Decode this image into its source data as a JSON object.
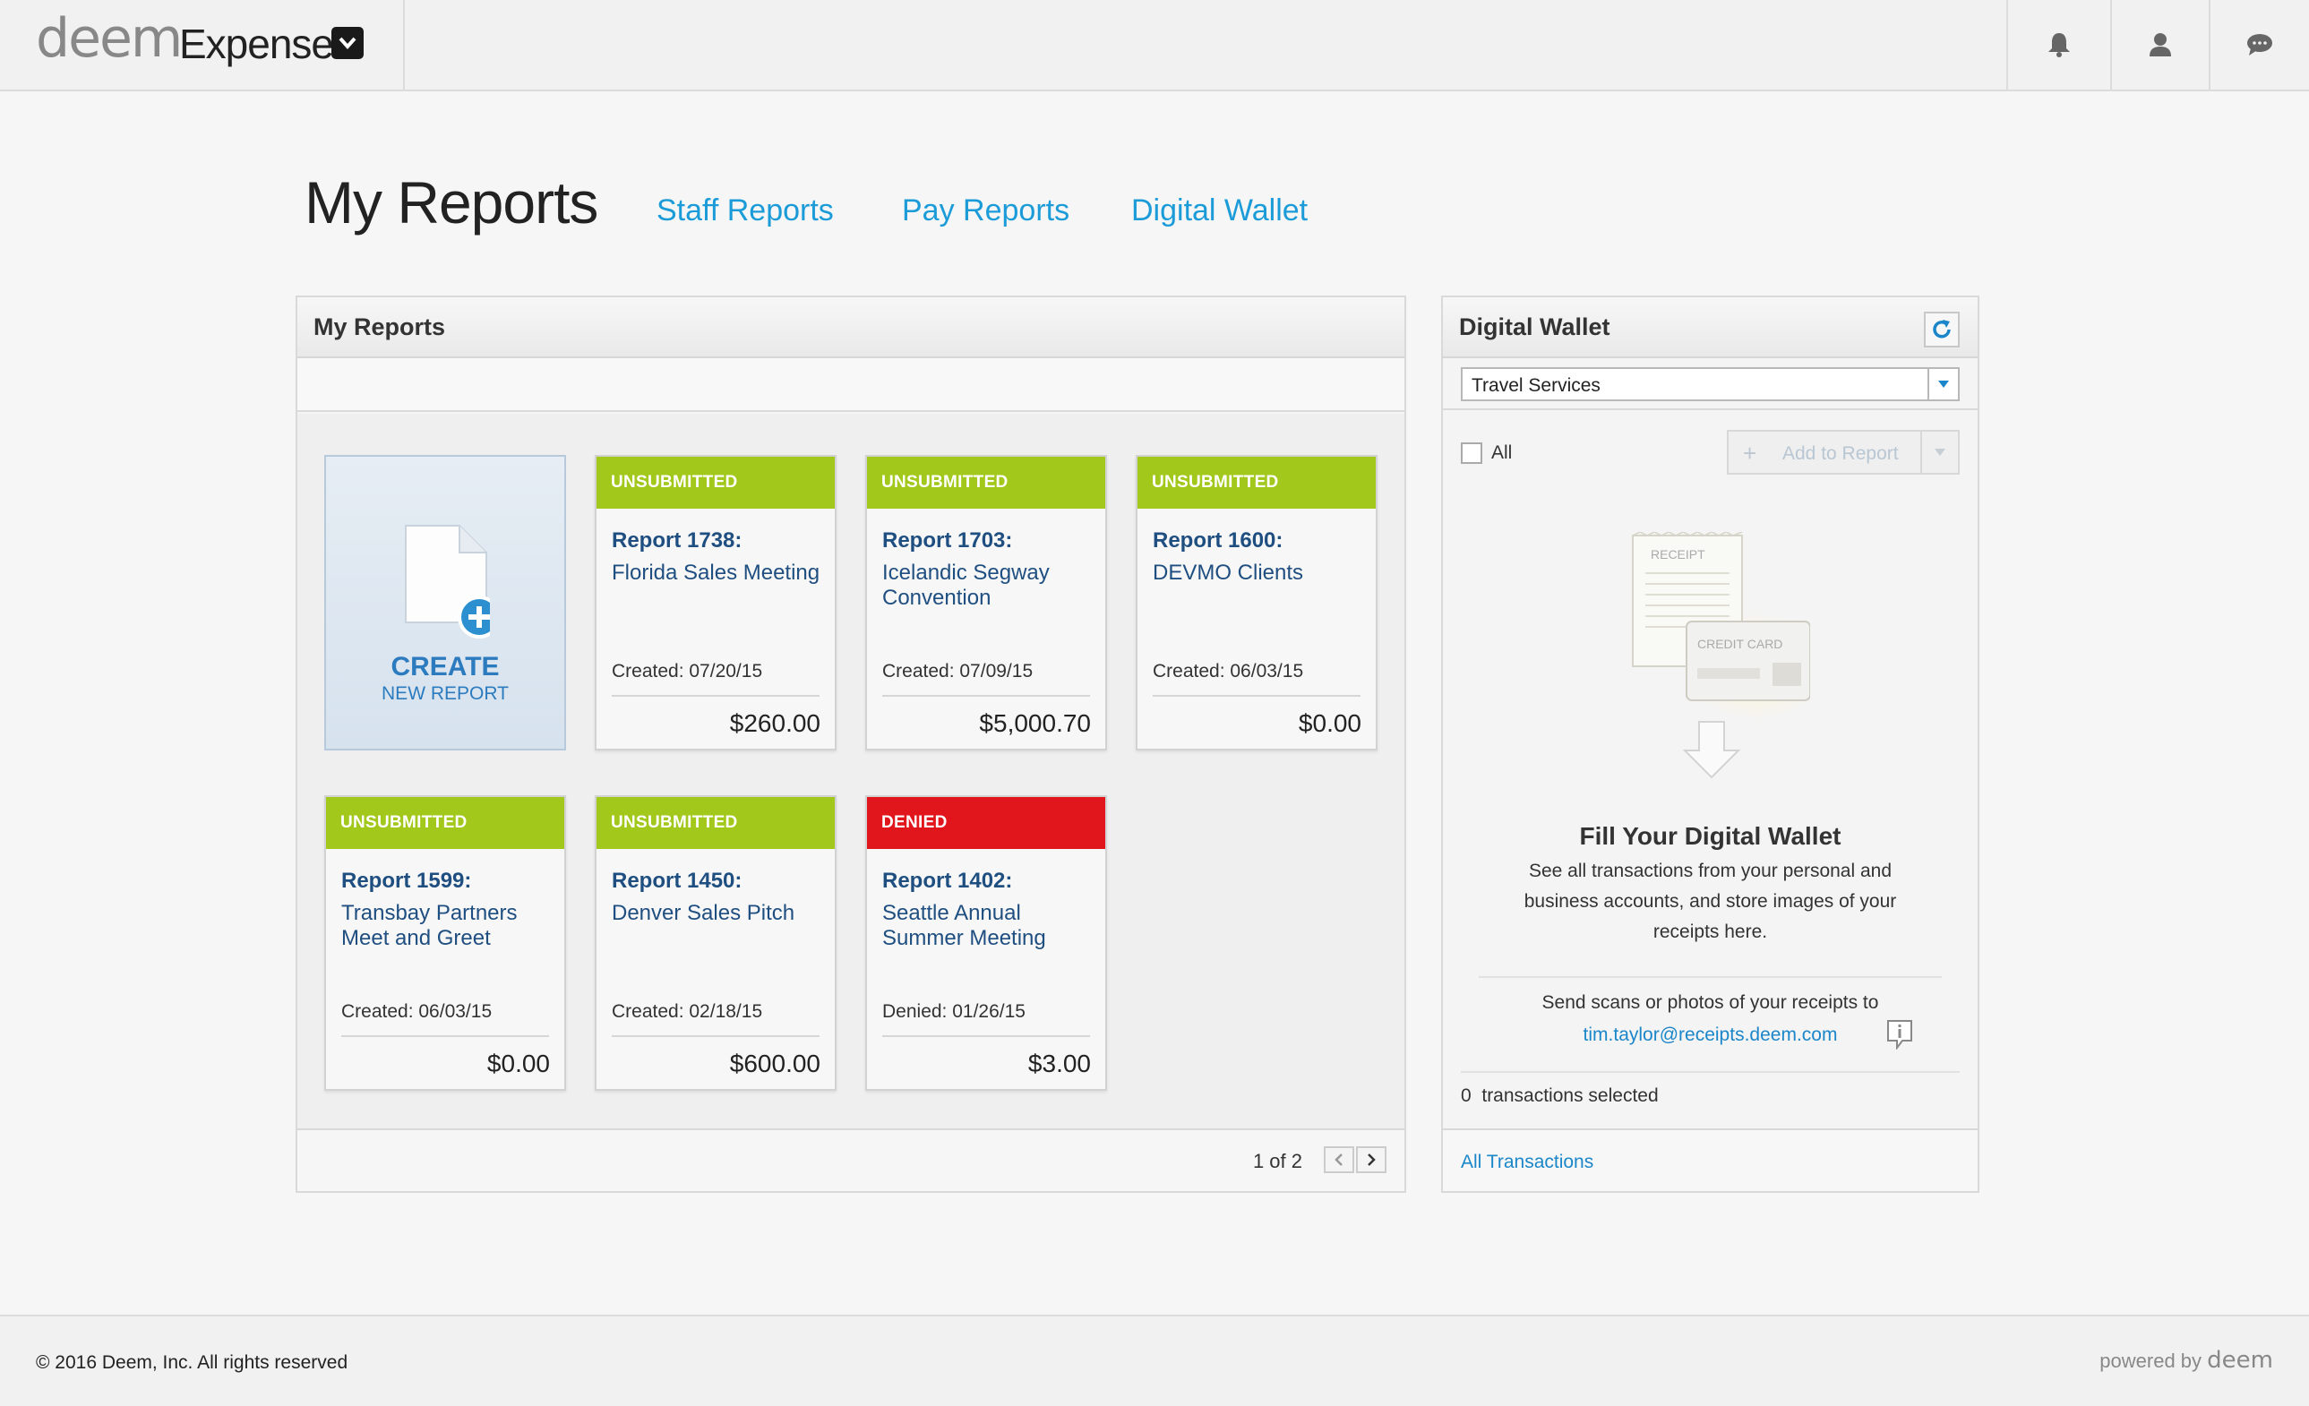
{
  "app": {
    "brand_deem": "deem",
    "brand_product": "Expense"
  },
  "page": {
    "title": "My Reports",
    "links": [
      "Staff Reports",
      "Pay Reports",
      "Digital Wallet"
    ]
  },
  "reports": {
    "panel_title": "My Reports",
    "create": {
      "label": "CREATE",
      "sublabel": "NEW REPORT"
    },
    "cards": [
      {
        "status": "UNSUBMITTED",
        "status_color": "#a3c81c",
        "id": "Report 1738:",
        "name": "Florida Sales Meeting",
        "date": "Created: 07/20/15",
        "amount": "$260.00"
      },
      {
        "status": "UNSUBMITTED",
        "status_color": "#a3c81c",
        "id": "Report 1703:",
        "name": "Icelandic Segway Convention",
        "date": "Created: 07/09/15",
        "amount": "$5,000.70"
      },
      {
        "status": "UNSUBMITTED",
        "status_color": "#a3c81c",
        "id": "Report 1600:",
        "name": "DEVMO Clients",
        "date": "Created: 06/03/15",
        "amount": "$0.00"
      },
      {
        "status": "UNSUBMITTED",
        "status_color": "#a3c81c",
        "id": "Report 1599:",
        "name": "Transbay Partners Meet and Greet",
        "date": "Created: 06/03/15",
        "amount": "$0.00"
      },
      {
        "status": "UNSUBMITTED",
        "status_color": "#a3c81c",
        "id": "Report 1450:",
        "name": "Denver Sales Pitch",
        "date": "Created: 02/18/15",
        "amount": "$600.00"
      },
      {
        "status": "DENIED",
        "status_color": "#e0161c",
        "id": "Report 1402:",
        "name": "Seattle Annual Summer Meeting",
        "date": "Denied: 01/26/15",
        "amount": "$3.00"
      }
    ],
    "pager": {
      "text": "1 of 2"
    }
  },
  "wallet": {
    "title": "Digital Wallet",
    "select_value": "Travel Services",
    "all_label": "All",
    "add_to_report": "Add to Report",
    "illus_receipt": "RECEIPT",
    "illus_card": "CREDIT CARD",
    "fill_title": "Fill Your Digital Wallet",
    "fill_desc": "See all transactions from your personal and business accounts, and store images of your receipts here.",
    "send_text": "Send scans or photos of your receipts to",
    "email": "tim.taylor@receipts.deem.com",
    "selected_count": "0",
    "selected_text": "transactions selected",
    "all_transactions": "All Transactions"
  },
  "footer": {
    "copyright": "© 2016 Deem, Inc. All rights reserved",
    "powered_by": "powered by",
    "powered_brand": "deem"
  },
  "colors": {
    "accent": "#1b9bd8",
    "unsubmitted": "#a3c81c",
    "denied": "#e0161c",
    "report_text": "#1f4e80"
  },
  "icons": [
    "bell-icon",
    "user-icon",
    "chat-icon",
    "chevron-down-icon",
    "refresh-icon",
    "document-plus-icon",
    "chevron-left-icon",
    "chevron-right-icon",
    "info-icon"
  ]
}
